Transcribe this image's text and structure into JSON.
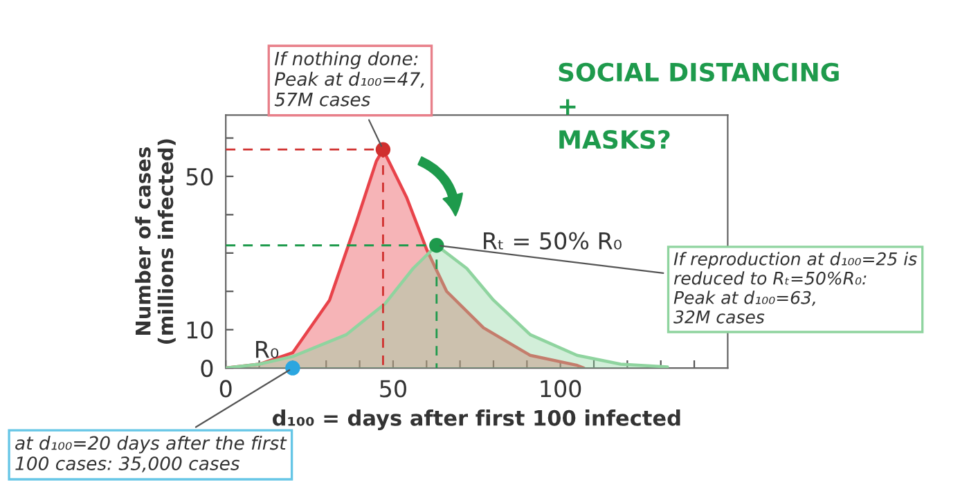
{
  "chart_data": {
    "type": "area",
    "xlabel": "d₁₀₀ = days after first 100 infected",
    "ylabel": "Number of cases\n(millions infected)",
    "xlim": [
      0,
      150
    ],
    "ylim": [
      0,
      66
    ],
    "xticks": [
      0,
      {
        "value": 10,
        "label": null
      },
      {
        "value": 20,
        "label": null
      },
      {
        "value": 30,
        "label": null
      },
      {
        "value": 40,
        "label": null
      },
      50,
      {
        "value": 60,
        "label": null
      },
      {
        "value": 70,
        "label": null
      },
      {
        "value": 80,
        "label": null
      },
      {
        "value": 90,
        "label": null
      },
      100,
      {
        "value": 110,
        "label": null
      },
      {
        "value": 120,
        "label": null
      },
      {
        "value": 130,
        "label": null
      },
      {
        "value": 140,
        "label": null
      }
    ],
    "yticks": [
      0,
      10,
      {
        "value": 20,
        "label": null
      },
      {
        "value": 30,
        "label": null
      },
      {
        "value": 40,
        "label": null
      },
      50,
      {
        "value": 60,
        "label": null
      }
    ],
    "grid": false,
    "legend": false,
    "series": [
      {
        "color": "#e8434a",
        "x": [
          0,
          10,
          20,
          31,
          39,
          45,
          47,
          54,
          60,
          66,
          77,
          91,
          105,
          107
        ],
        "values": [
          0,
          1,
          4,
          17.7,
          38,
          54,
          57,
          44.6,
          31,
          20,
          10.5,
          3.3,
          0.7,
          0
        ]
      },
      {
        "color": "#8fd49f",
        "x": [
          0,
          10,
          20,
          36,
          47.5,
          56,
          63,
          72,
          80,
          91,
          105,
          118,
          132
        ],
        "values": [
          0,
          1,
          3,
          8.7,
          16.7,
          26,
          32,
          26,
          17.7,
          8.7,
          3.3,
          1,
          0.3
        ]
      },
      {
        "type": "line",
        "line_style": "dashed",
        "color": "#d0302f",
        "x": [
          0,
          47,
          47
        ],
        "values": [
          57,
          57,
          0
        ]
      },
      {
        "type": "line",
        "line_style": "dashed",
        "color": "#1e9a4c",
        "x": [
          0,
          63,
          63
        ],
        "values": [
          32,
          32,
          0
        ]
      },
      {
        "type": "scatter",
        "x": [
          47,
          63,
          20
        ],
        "values": [
          57,
          32,
          0
        ],
        "colors": [
          "#d0302f",
          "#1e9a4c",
          "#2ba6e0"
        ]
      }
    ],
    "annotations": [
      {
        "text": "If nothing done:\nPeak at d₁₀₀=47,\n57M cases",
        "x": 47,
        "y": 57
      },
      "SOCIAL DISTANCING\n+\nMASKS?",
      {
        "text": "Rₜ = 50% R₀",
        "x": 63,
        "y": 32
      },
      {
        "text": "If reproduction at d₁₀₀=25 is\nreduced to Rₜ=50%R₀:\nPeak at d₁₀₀=63,\n32M cases",
        "x": 63,
        "y": 32
      },
      {
        "text": "R₀",
        "x": 20,
        "y": 0
      },
      {
        "text": "at d₁₀₀=20 days after the first\n100 cases: 35,000 cases",
        "x": 20,
        "y": 0
      }
    ]
  }
}
